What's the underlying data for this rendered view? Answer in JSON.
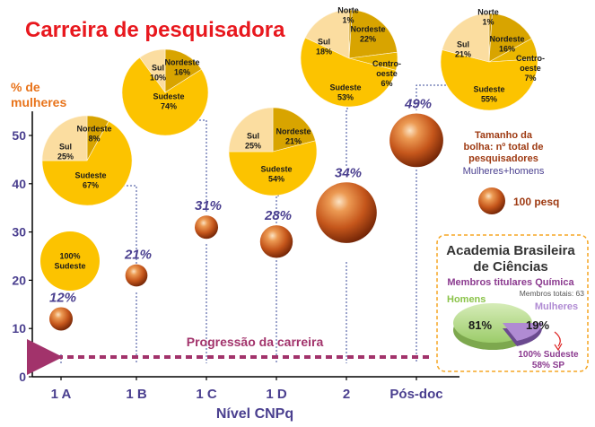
{
  "title": "Carreira de pesquisadora",
  "colors": {
    "title": "#e8181e",
    "orange_text": "#e8731a",
    "purple": "#4a3f8f",
    "magenta_arrow": "#a2336b",
    "bubble": "#c5561b",
    "brown_label": "#9e3a12",
    "pie_sudeste": "#fcc300",
    "pie_sul": "#fbdda0",
    "pie_nordeste": "#d8a400",
    "pie_centro_oeste": "#ebb700",
    "pie_norte": "#c49000",
    "abc_box_border": "#f5a623",
    "abc_title": "#333333",
    "abc_subtitle": "#8b3a8f",
    "abc_homens": "#8bc34a",
    "abc_mulheres": "#b08bd3"
  },
  "chart_data": {
    "type": "scatter",
    "xlabel": "Nível CNPq",
    "ylabel": "% de\nmulheres",
    "categories": [
      "1 A",
      "1 B",
      "1 C",
      "1 D",
      "2",
      "Pós-doc"
    ],
    "ylim": [
      0,
      55
    ],
    "yticks": [
      0,
      10,
      20,
      30,
      40,
      50
    ],
    "points": [
      {
        "category": "1 A",
        "value": 12,
        "label": "12%",
        "size": 1.0
      },
      {
        "category": "1 B",
        "value": 21,
        "label": "21%",
        "size": 0.95
      },
      {
        "category": "1 C",
        "value": 31,
        "label": "31%",
        "size": 1.0
      },
      {
        "category": "1 D",
        "value": 28,
        "label": "28%",
        "size": 1.4
      },
      {
        "category": "2",
        "value": 34,
        "label": "34%",
        "size": 2.6
      },
      {
        "category": "Pós-doc",
        "value": 49,
        "label": "49%",
        "size": 2.3
      }
    ],
    "pies": [
      {
        "category": "1 A",
        "slices": [
          {
            "name": "Sudeste",
            "value": 100,
            "label": "100%"
          }
        ]
      },
      {
        "category": "1 A",
        "slices": [
          {
            "name": "Nordeste",
            "value": 8,
            "label": "8%"
          },
          {
            "name": "Sudeste",
            "value": 67,
            "label": "67%"
          },
          {
            "name": "Sul",
            "value": 25,
            "label": "25%"
          }
        ]
      },
      {
        "category": "1 B",
        "slices": [
          {
            "name": "Nordeste",
            "value": 16,
            "label": "16%"
          },
          {
            "name": "Sudeste",
            "value": 74,
            "label": "74%"
          },
          {
            "name": "Sul",
            "value": 10,
            "label": "10%"
          }
        ]
      },
      {
        "category": "1 D",
        "slices": [
          {
            "name": "Nordeste",
            "value": 21,
            "label": "21%"
          },
          {
            "name": "Sudeste",
            "value": 54,
            "label": "54%"
          },
          {
            "name": "Sul",
            "value": 25,
            "label": "25%"
          }
        ]
      },
      {
        "category": "2",
        "slices": [
          {
            "name": "Norte",
            "value": 1,
            "label": "1%"
          },
          {
            "name": "Nordeste",
            "value": 22,
            "label": "22%"
          },
          {
            "name": "Centro-oeste",
            "value": 6,
            "label": "6%"
          },
          {
            "name": "Sudeste",
            "value": 53,
            "label": "53%"
          },
          {
            "name": "Sul",
            "value": 18,
            "label": "18%"
          }
        ]
      },
      {
        "category": "Pós-doc",
        "slices": [
          {
            "name": "Norte",
            "value": 1,
            "label": "1%"
          },
          {
            "name": "Nordeste",
            "value": 16,
            "label": "16%"
          },
          {
            "name": "Centro-oeste",
            "value": 7,
            "label": "7%"
          },
          {
            "name": "Sudeste",
            "value": 55,
            "label": "55%"
          },
          {
            "name": "Sul",
            "value": 21,
            "label": "21%"
          }
        ]
      }
    ],
    "annotations": {
      "arrow_text": "Progressão da carreira",
      "bubble_size_note": [
        "Tamanho da",
        "bolha: nº total de",
        "pesquisadores"
      ],
      "bubble_size_sub": "Mulheres+homens",
      "reference_bubble_label": "100 pesq"
    },
    "abc_panel": {
      "title": [
        "Academia Brasileira",
        "de Ciências"
      ],
      "subtitle": "Membros titulares Química",
      "total": "Membros totais: 63",
      "homens_label": "Homens",
      "homens_value": "81%",
      "mulheres_label": "Mulheres",
      "mulheres_value": "19%",
      "footnote": [
        "100% Sudeste",
        "58% SP"
      ]
    }
  }
}
